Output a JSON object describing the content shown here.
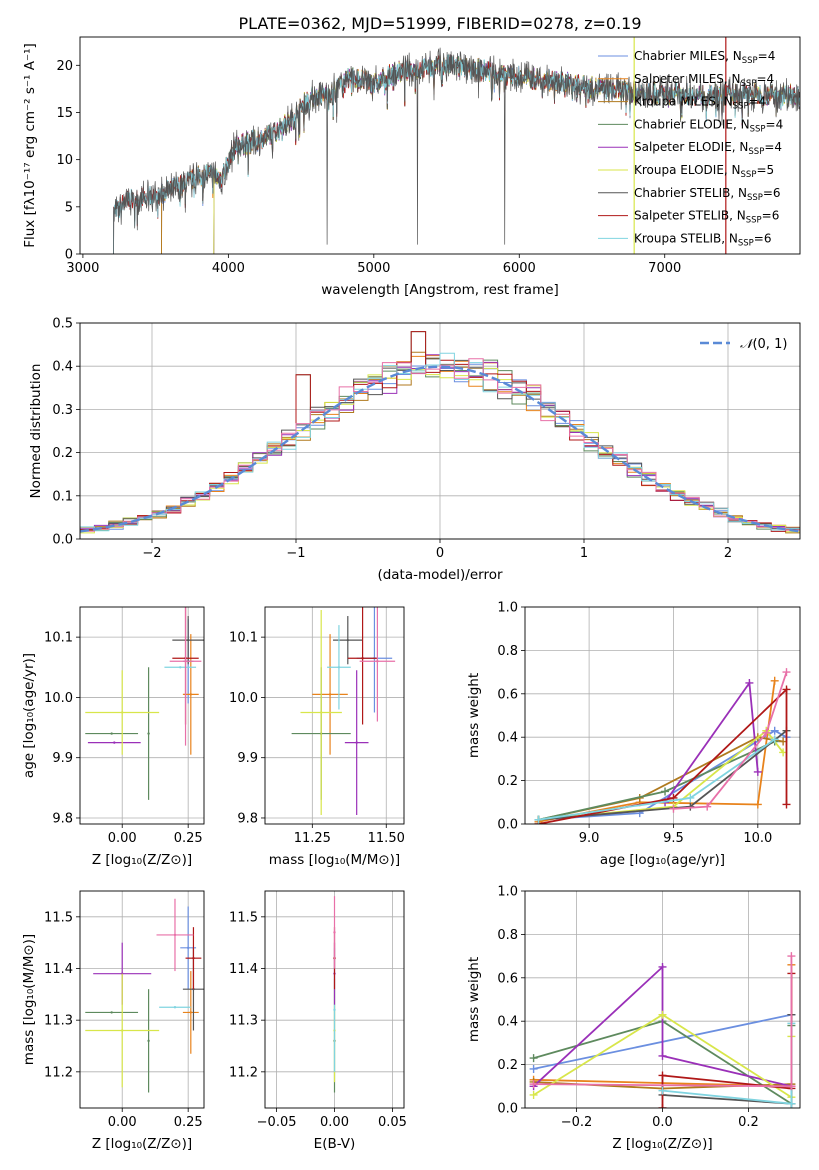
{
  "title": "PLATE=0362, MJD=51999, FIBERID=0278, z=0.19",
  "colors": {
    "Chabrier MILES": "#6b8fe0",
    "Salpeter MILES": "#e8831c",
    "Kroupa MILES": "#b07a1e",
    "Chabrier ELODIE": "#5e8a5e",
    "Salpeter ELODIE": "#9a30b8",
    "Kroupa ELODIE": "#d8e64a",
    "Chabrier STELIB": "#555555",
    "Salpeter STELIB": "#b01818",
    "Kroupa STELIB": "#80d4e0",
    "pink": "#e870a8",
    "gaussian": "#5a8ad6"
  },
  "chart_data": [
    {
      "type": "line",
      "id": "spectrum",
      "xlabel": "wavelength [Angstrom, rest frame]",
      "ylabel": "Flux [fλ10⁻¹⁷ erg cm⁻² s⁻¹ A⁻¹]",
      "xlim": [
        2980,
        7930
      ],
      "ylim": [
        0,
        23
      ],
      "xticks": [
        3000,
        4000,
        5000,
        6000,
        7000
      ],
      "yticks": [
        0,
        5,
        10,
        15,
        20
      ],
      "grid": false,
      "legend_position": "top-right",
      "continuum": [
        [
          3210,
          4.2
        ],
        [
          3300,
          5.6
        ],
        [
          3450,
          6.0
        ],
        [
          3550,
          6.4
        ],
        [
          3700,
          7.5
        ],
        [
          3850,
          8.6
        ],
        [
          3950,
          8.0
        ],
        [
          4050,
          11.5
        ],
        [
          4150,
          11.8
        ],
        [
          4300,
          12.6
        ],
        [
          4450,
          14.5
        ],
        [
          4550,
          16.5
        ],
        [
          4700,
          17.0
        ],
        [
          4850,
          18.8
        ],
        [
          5000,
          18.0
        ],
        [
          5150,
          19.2
        ],
        [
          5300,
          19.6
        ],
        [
          5500,
          20.0
        ],
        [
          5700,
          19.6
        ],
        [
          5900,
          19.0
        ],
        [
          6100,
          18.6
        ],
        [
          6300,
          18.2
        ],
        [
          6500,
          17.6
        ],
        [
          6700,
          17.3
        ],
        [
          6900,
          17.0
        ],
        [
          7100,
          17.0
        ],
        [
          7300,
          16.8
        ],
        [
          7500,
          16.9
        ],
        [
          7930,
          16.9
        ]
      ],
      "series": [
        {
          "name": "Chabrier MILES, N_SSP=4",
          "label_main": "Chabrier MILES, N",
          "label_sub": "SSP",
          "label_tail": "=4",
          "start": 3540
        },
        {
          "name": "Salpeter MILES, N_SSP=4",
          "label_main": "Salpeter MILES, N",
          "label_sub": "SSP",
          "label_tail": "=4",
          "start": 3540
        },
        {
          "name": "Kroupa MILES, N_SSP=4",
          "label_main": "Kroupa MILES, N",
          "label_sub": "SSP",
          "label_tail": "=4",
          "start": 3540
        },
        {
          "name": "Chabrier ELODIE, N_SSP=4",
          "label_main": "Chabrier ELODIE, N",
          "label_sub": "SSP",
          "label_tail": "=4",
          "start": 3900
        },
        {
          "name": "Salpeter ELODIE, N_SSP=4",
          "label_main": "Salpeter ELODIE, N",
          "label_sub": "SSP",
          "label_tail": "=4",
          "start": 3900
        },
        {
          "name": "Kroupa ELODIE, N_SSP=5",
          "label_main": "Kroupa ELODIE, N",
          "label_sub": "SSP",
          "label_tail": "=5",
          "start": 3900
        },
        {
          "name": "Chabrier STELIB, N_SSP=6",
          "label_main": "Chabrier STELIB, N",
          "label_sub": "SSP",
          "label_tail": "=6",
          "start": 3210
        },
        {
          "name": "Salpeter STELIB, N_SSP=6",
          "label_main": "Salpeter STELIB, N",
          "label_sub": "SSP",
          "label_tail": "=6",
          "start": 3210
        },
        {
          "name": "Kroupa STELIB, N_SSP=6",
          "label_main": "Kroupa STELIB, N",
          "label_sub": "SSP",
          "label_tail": "=6",
          "start": 3210
        }
      ],
      "cutoffs": [
        {
          "x": 6790,
          "color_key": "Kroupa ELODIE"
        },
        {
          "x": 7420,
          "color_key": "Salpeter STELIB"
        }
      ]
    },
    {
      "type": "line",
      "id": "residual_histogram",
      "xlabel": "(data-model)/error",
      "ylabel": "Normed distribution",
      "xlim": [
        -2.5,
        2.5
      ],
      "ylim": [
        0,
        0.5
      ],
      "xticks": [
        -2,
        -1,
        0,
        1,
        2
      ],
      "yticks": [
        0,
        0.1,
        0.2,
        0.3,
        0.4,
        0.5
      ],
      "grid": true,
      "legend_position": "top-right",
      "reference": {
        "name": "N(0,1)",
        "label_script": "𝒩",
        "label_args": "(0, 1)",
        "mean": 0,
        "sigma": 1
      },
      "bin_width": 0.1,
      "outlier_bins": [
        {
          "x": -0.9,
          "y": 0.38
        },
        {
          "x": -0.1,
          "y": 0.48
        }
      ]
    },
    {
      "type": "scatter",
      "id": "age_vs_Z",
      "xlabel": "Z [log₁₀(Z/Z⊙)]",
      "ylabel": "age  [log₁₀(age/yr)]",
      "xlim": [
        -0.16,
        0.31
      ],
      "ylim": [
        9.79,
        10.15
      ],
      "xticks": [
        0.0,
        0.25
      ],
      "yticks": [
        9.8,
        9.9,
        10.0,
        10.1
      ],
      "grid": true,
      "points": [
        {
          "c": "Chabrier MILES",
          "x": 0.25,
          "y": 10.06,
          "xe": 0.02,
          "ye": 0.07
        },
        {
          "c": "Salpeter MILES",
          "x": 0.26,
          "y": 10.005,
          "xe": 0.03,
          "ye": 0.1
        },
        {
          "c": "Chabrier ELODIE",
          "x": -0.04,
          "y": 9.94,
          "xe": 0.1,
          "ye": 0.0
        },
        {
          "c": "Chabrier ELODIE",
          "x": 0.1,
          "y": 9.94,
          "xe": 0.0,
          "ye": 0.11
        },
        {
          "c": "Salpeter ELODIE",
          "x": -0.03,
          "y": 9.925,
          "xe": 0.1,
          "ye": 0.0
        },
        {
          "c": "Kroupa ELODIE",
          "x": 0.0,
          "y": 9.975,
          "xe": 0.14,
          "ye": 0.07
        },
        {
          "c": "Chabrier STELIB",
          "x": 0.25,
          "y": 10.095,
          "xe": 0.06,
          "ye": 0.04
        },
        {
          "c": "Salpeter STELIB",
          "x": 0.24,
          "y": 10.065,
          "xe": 0.05,
          "ye": 0.11
        },
        {
          "c": "Kroupa STELIB",
          "x": 0.22,
          "y": 10.05,
          "xe": 0.06,
          "ye": 0.0
        },
        {
          "c": "pink",
          "x": 0.24,
          "y": 10.06,
          "xe": 0.06,
          "ye": 0.14
        }
      ]
    },
    {
      "type": "scatter",
      "id": "age_vs_mass",
      "xlabel": "mass [log₁₀(M/M⊙)]",
      "ylabel": "",
      "xlim": [
        11.09,
        11.56
      ],
      "ylim": [
        9.79,
        10.15
      ],
      "xticks": [
        11.25,
        11.5
      ],
      "yticks": [
        9.8,
        9.9,
        10.0,
        10.1
      ],
      "grid": true,
      "points": [
        {
          "c": "Chabrier MILES",
          "x": 11.46,
          "y": 10.065,
          "xe": 0.06,
          "ye": 0.09
        },
        {
          "c": "Salpeter MILES",
          "x": 11.31,
          "y": 10.005,
          "xe": 0.06,
          "ye": 0.1
        },
        {
          "c": "Chabrier ELODIE",
          "x": 11.28,
          "y": 9.94,
          "xe": 0.1,
          "ye": 0.11
        },
        {
          "c": "Salpeter ELODIE",
          "x": 11.4,
          "y": 9.925,
          "xe": 0.04,
          "ye": 0.12
        },
        {
          "c": "Kroupa ELODIE",
          "x": 11.28,
          "y": 9.975,
          "xe": 0.07,
          "ye": 0.17
        },
        {
          "c": "Chabrier STELIB",
          "x": 11.37,
          "y": 10.095,
          "xe": 0.05,
          "ye": 0.04
        },
        {
          "c": "Salpeter STELIB",
          "x": 11.42,
          "y": 10.065,
          "xe": 0.05,
          "ye": 0.11
        },
        {
          "c": "Kroupa STELIB",
          "x": 11.34,
          "y": 10.05,
          "xe": 0.04,
          "ye": 0.07
        },
        {
          "c": "pink",
          "x": 11.47,
          "y": 10.06,
          "xe": 0.06,
          "ye": 0.1
        }
      ]
    },
    {
      "type": "line",
      "id": "weight_vs_age",
      "xlabel": "age  [log₁₀(age/yr)]",
      "ylabel": "mass weight",
      "xlim": [
        8.62,
        10.25
      ],
      "ylim": [
        0,
        1.0
      ],
      "xticks": [
        9.0,
        9.5,
        10.0
      ],
      "yticks": [
        0.0,
        0.2,
        0.4,
        0.6,
        0.8,
        1.0
      ],
      "grid": true,
      "series": [
        {
          "c": "Chabrier MILES",
          "x": [
            8.7,
            9.3,
            10.1,
            10.17
          ],
          "y": [
            0.02,
            0.05,
            0.43,
            0.4
          ]
        },
        {
          "c": "Salpeter MILES",
          "x": [
            8.7,
            9.3,
            10.0,
            10.1
          ],
          "y": [
            0.01,
            0.1,
            0.09,
            0.66
          ]
        },
        {
          "c": "Kroupa MILES",
          "x": [
            8.7,
            9.3,
            10.0,
            10.15
          ],
          "y": [
            0.02,
            0.12,
            0.4,
            0.38
          ]
        },
        {
          "c": "Chabrier ELODIE",
          "x": [
            8.7,
            9.45,
            10.1
          ],
          "y": [
            0.02,
            0.15,
            0.38
          ]
        },
        {
          "c": "Salpeter ELODIE",
          "x": [
            9.45,
            9.95,
            10.0
          ],
          "y": [
            0.1,
            0.65,
            0.24
          ]
        },
        {
          "c": "Kroupa ELODIE",
          "x": [
            8.7,
            9.5,
            10.05,
            10.15
          ],
          "y": [
            0.02,
            0.08,
            0.43,
            0.33
          ]
        },
        {
          "c": "Chabrier STELIB",
          "x": [
            8.7,
            9.6,
            10.17
          ],
          "y": [
            0.02,
            0.08,
            0.43
          ]
        },
        {
          "c": "Salpeter STELIB",
          "x": [
            8.7,
            9.5,
            10.17,
            10.17
          ],
          "y": [
            0.0,
            0.12,
            0.62,
            0.09
          ]
        },
        {
          "c": "Kroupa STELIB",
          "x": [
            8.7,
            9.6,
            10.1
          ],
          "y": [
            0.02,
            0.12,
            0.39
          ]
        },
        {
          "c": "pink",
          "x": [
            9.5,
            9.7,
            10.05,
            10.17
          ],
          "y": [
            0.07,
            0.08,
            0.42,
            0.7
          ]
        }
      ]
    },
    {
      "type": "scatter",
      "id": "mass_vs_Z",
      "xlabel": "Z [log₁₀(Z/Z⊙)]",
      "ylabel": "mass [log₁₀(M/M⊙)]",
      "xlim": [
        -0.16,
        0.31
      ],
      "ylim": [
        11.13,
        11.55
      ],
      "xticks": [
        0.0,
        0.25
      ],
      "yticks": [
        11.2,
        11.3,
        11.4,
        11.5
      ],
      "grid": true,
      "points": [
        {
          "c": "Chabrier MILES",
          "x": 0.25,
          "y": 11.44,
          "xe": 0.03,
          "ye": 0.08
        },
        {
          "c": "Salpeter MILES",
          "x": 0.26,
          "y": 11.315,
          "xe": 0.03,
          "ye": 0.08
        },
        {
          "c": "Chabrier ELODIE",
          "x": -0.04,
          "y": 11.315,
          "xe": 0.1,
          "ye": 0.0
        },
        {
          "c": "Chabrier ELODIE",
          "x": 0.1,
          "y": 11.26,
          "xe": 0.0,
          "ye": 0.1
        },
        {
          "c": "Salpeter ELODIE",
          "x": 0.0,
          "y": 11.39,
          "xe": 0.11,
          "ye": 0.06
        },
        {
          "c": "Kroupa ELODIE",
          "x": 0.0,
          "y": 11.28,
          "xe": 0.14,
          "ye": 0.11
        },
        {
          "c": "Chabrier STELIB",
          "x": 0.27,
          "y": 11.36,
          "xe": 0.04,
          "ye": 0.08
        },
        {
          "c": "Salpeter STELIB",
          "x": 0.27,
          "y": 11.42,
          "xe": 0.03,
          "ye": 0.06
        },
        {
          "c": "Kroupa STELIB",
          "x": 0.2,
          "y": 11.325,
          "xe": 0.06,
          "ye": 0.0
        },
        {
          "c": "pink",
          "x": 0.2,
          "y": 11.465,
          "xe": 0.07,
          "ye": 0.07
        }
      ]
    },
    {
      "type": "scatter",
      "id": "mass_vs_EBV",
      "xlabel": "E(B-V)",
      "ylabel": "",
      "xlim": [
        -0.06,
        0.06
      ],
      "ylim": [
        11.13,
        11.55
      ],
      "xticks": [
        -0.05,
        0.0,
        0.05
      ],
      "yticks": [
        11.2,
        11.3,
        11.4,
        11.5
      ],
      "grid": true,
      "points": [
        {
          "c": "Chabrier ELODIE",
          "x": 0.0,
          "y": 11.26,
          "xe": 0.0,
          "ye": 0.1
        },
        {
          "c": "Kroupa ELODIE",
          "x": 0.0,
          "y": 11.28,
          "xe": 0.0,
          "ye": 0.1
        },
        {
          "c": "Kroupa STELIB",
          "x": 0.0,
          "y": 11.32,
          "xe": 0.0,
          "ye": 0.12
        },
        {
          "c": "Salpeter ELODIE",
          "x": 0.0,
          "y": 11.39,
          "xe": 0.0,
          "ye": 0.06
        },
        {
          "c": "Salpeter STELIB",
          "x": 0.0,
          "y": 11.42,
          "xe": 0.0,
          "ye": 0.06
        },
        {
          "c": "pink",
          "x": 0.0,
          "y": 11.47,
          "xe": 0.0,
          "ye": 0.07
        }
      ]
    },
    {
      "type": "line",
      "id": "weight_vs_Z",
      "xlabel": "Z [log₁₀(Z/Z⊙)]",
      "ylabel": "mass weight",
      "xlim": [
        -0.32,
        0.32
      ],
      "ylim": [
        0,
        1.0
      ],
      "xticks": [
        -0.2,
        0.0,
        0.2
      ],
      "yticks": [
        0.0,
        0.2,
        0.4,
        0.6,
        0.8,
        1.0
      ],
      "grid": true,
      "series": [
        {
          "c": "Chabrier MILES",
          "x": [
            -0.3,
            0.3,
            0.3
          ],
          "y": [
            0.18,
            0.43,
            0.02
          ]
        },
        {
          "c": "Salpeter MILES",
          "x": [
            -0.3,
            0.3,
            0.3
          ],
          "y": [
            0.13,
            0.1,
            0.66
          ]
        },
        {
          "c": "Kroupa MILES",
          "x": [
            -0.3,
            0.0,
            0.3
          ],
          "y": [
            0.12,
            0.09,
            0.11
          ]
        },
        {
          "c": "Chabrier ELODIE",
          "x": [
            -0.3,
            0.0,
            0.3,
            0.3
          ],
          "y": [
            0.23,
            0.4,
            0.02,
            0.38
          ]
        },
        {
          "c": "Salpeter ELODIE",
          "x": [
            -0.3,
            0.0,
            0.0,
            0.3
          ],
          "y": [
            0.1,
            0.65,
            0.24,
            0.1
          ]
        },
        {
          "c": "Kroupa ELODIE",
          "x": [
            -0.3,
            0.0,
            0.3,
            0.3
          ],
          "y": [
            0.06,
            0.43,
            0.05,
            0.33
          ]
        },
        {
          "c": "Chabrier STELIB",
          "x": [
            0.0,
            0.3,
            0.3
          ],
          "y": [
            0.06,
            0.02,
            0.43
          ]
        },
        {
          "c": "Salpeter STELIB",
          "x": [
            0.0,
            0.0,
            0.3,
            0.3
          ],
          "y": [
            0.0,
            0.15,
            0.09,
            0.62
          ]
        },
        {
          "c": "Kroupa STELIB",
          "x": [
            0.0,
            0.3,
            0.3
          ],
          "y": [
            0.08,
            0.02,
            0.39
          ]
        },
        {
          "c": "pink",
          "x": [
            -0.3,
            0.3,
            0.3
          ],
          "y": [
            0.11,
            0.1,
            0.7
          ]
        }
      ]
    }
  ]
}
